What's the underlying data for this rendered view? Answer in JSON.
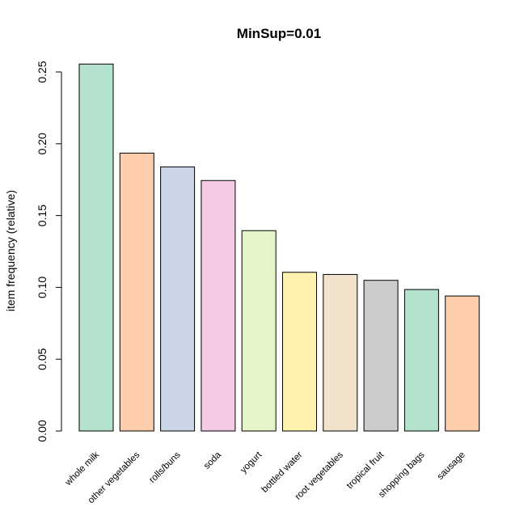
{
  "chart_data": {
    "type": "bar",
    "title": "MinSup=0.01",
    "xlabel": "",
    "ylabel": "item frequency (relative)",
    "ylim": [
      0,
      0.25
    ],
    "yticks": [
      "0.00",
      "0.05",
      "0.10",
      "0.15",
      "0.20",
      "0.25"
    ],
    "grid": false,
    "categories": [
      "whole milk",
      "other vegetables",
      "rolls/buns",
      "soda",
      "yogurt",
      "bottled water",
      "root vegetables",
      "tropical fruit",
      "shopping bags",
      "sausage"
    ],
    "values": [
      0.2555,
      0.1935,
      0.1839,
      0.1744,
      0.1395,
      0.1105,
      0.109,
      0.1049,
      0.0985,
      0.094
    ],
    "colors": [
      "#B3E2CD",
      "#FDCDAC",
      "#CBD5E8",
      "#F4CAE4",
      "#E6F5C9",
      "#FFF2AE",
      "#F1E2CC",
      "#CCCCCC",
      "#B3E2CD",
      "#FDCDAC"
    ]
  }
}
